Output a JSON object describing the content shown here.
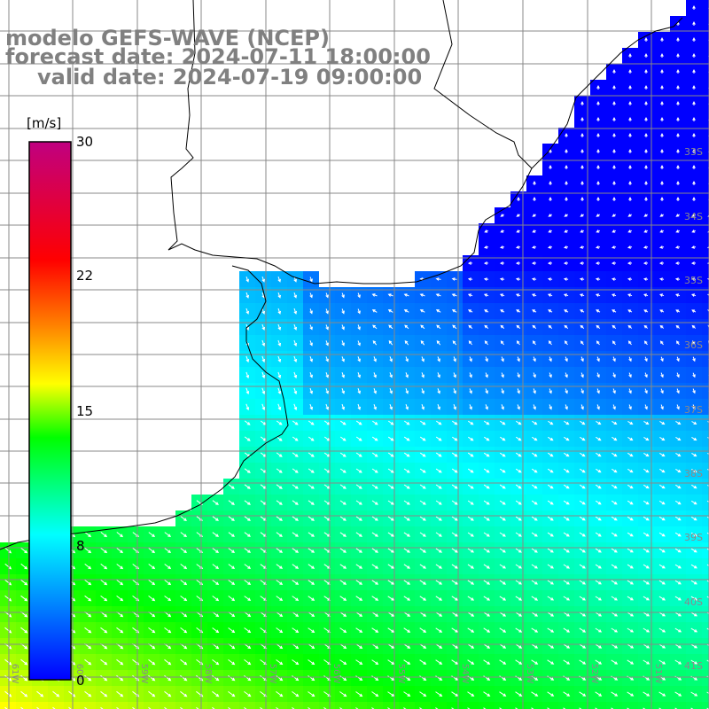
{
  "titles": {
    "model": "modelo GEFS-WAVE (NCEP)",
    "forecast": "forecast date: 2024-07-11 18:00:00",
    "valid": "valid date: 2024-07-19 09:00:00"
  },
  "colorbar": {
    "unit": "[m/s]",
    "ticks": [
      "30",
      "22",
      "15",
      "8",
      "0"
    ],
    "colors": [
      "#0000ff",
      "#00ffff",
      "#00ff00",
      "#ffff00",
      "#ff8000",
      "#ff0000",
      "#c00080"
    ]
  },
  "lat_labels": [
    "33S",
    "34S",
    "35S",
    "36S",
    "37S",
    "38S",
    "39S",
    "40S",
    "41S"
  ],
  "lon_labels": [
    "61W",
    "60W",
    "59W",
    "58W",
    "57W",
    "56W",
    "55W",
    "54W",
    "53W",
    "52W",
    "51W"
  ],
  "colors": {
    "grid": "#888888",
    "land": "#ffffff",
    "coast": "#000000",
    "arrow": "#ffffff",
    "title": "#808080"
  }
}
